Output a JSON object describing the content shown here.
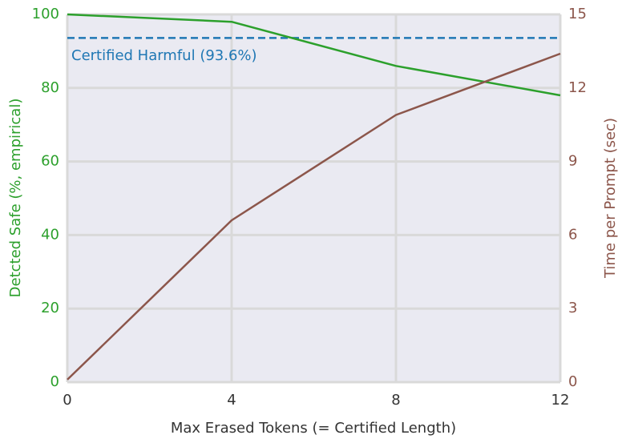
{
  "chart_data": {
    "type": "line",
    "x": [
      0,
      4,
      8,
      12
    ],
    "xlabel": "Max Erased Tokens (= Certified Length)",
    "xlim": [
      0,
      12
    ],
    "xticks": [
      "0",
      "4",
      "8",
      "12"
    ],
    "ylabel_left": "Detcted Safe (%, empirical)",
    "ylim_left": [
      0,
      100
    ],
    "yticks_left": [
      "0",
      "20",
      "40",
      "60",
      "80",
      "100"
    ],
    "ylabel_right": "Time per Prompt (sec)",
    "ylim_right": [
      0,
      15
    ],
    "yticks_right": [
      "0",
      "3",
      "6",
      "9",
      "12",
      "15"
    ],
    "grid": true,
    "colors": {
      "left_axis": "#2ca02c",
      "right_axis": "#8c564b",
      "reference": "#1f77b4",
      "background": "#eaeaf2",
      "grid": "#d9d9d9"
    },
    "series": [
      {
        "axis": "left",
        "color": "#2ca02c",
        "x": [
          0,
          4,
          8,
          12
        ],
        "values": [
          100,
          98,
          86,
          78
        ]
      },
      {
        "axis": "right",
        "color": "#8c564b",
        "x": [
          0,
          4,
          8,
          12
        ],
        "values": [
          0.1,
          6.6,
          10.9,
          13.4
        ]
      }
    ],
    "reference_line": {
      "axis": "left",
      "value": 93.6,
      "style": "dashed",
      "color": "#1f77b4",
      "label": "Certified Harmful (93.6%)"
    }
  }
}
